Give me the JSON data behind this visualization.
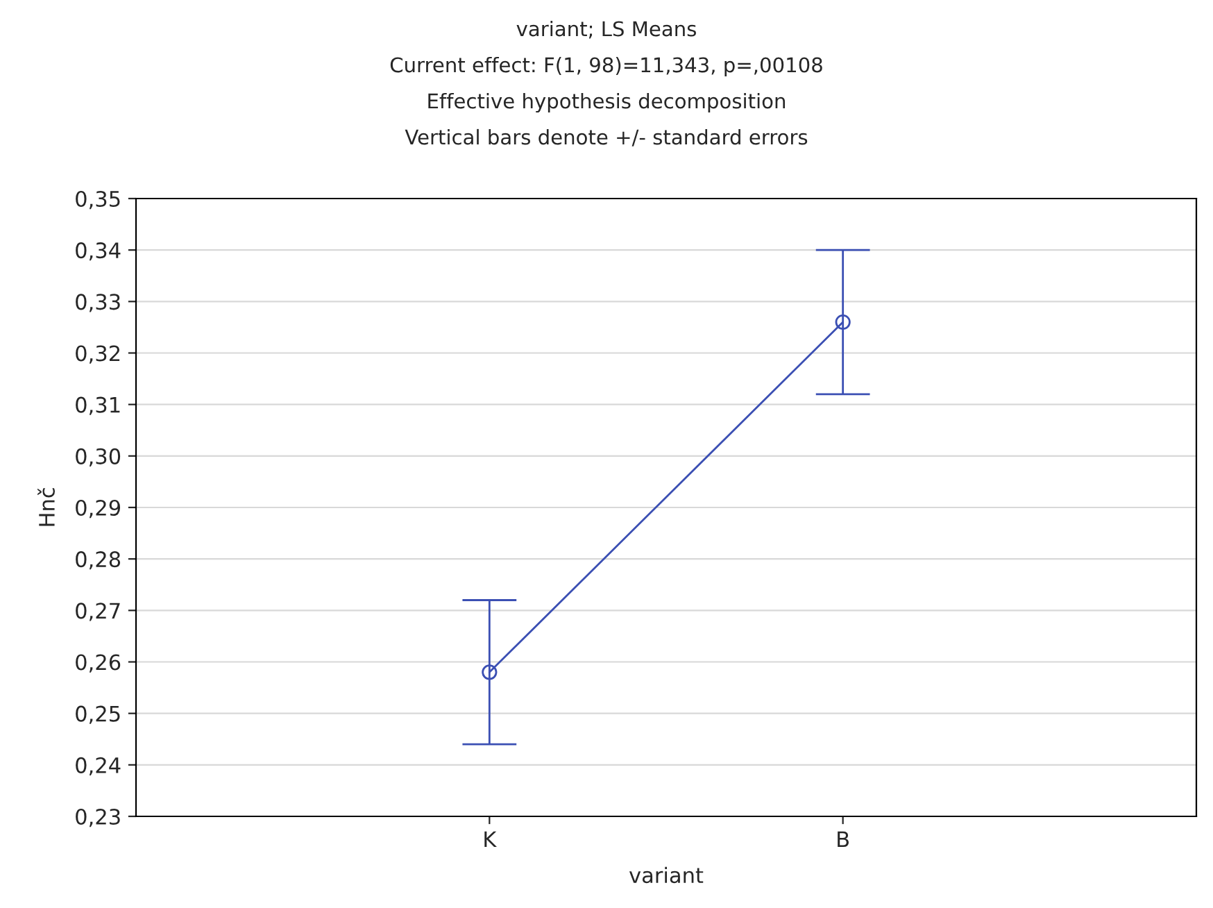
{
  "chart_data": {
    "type": "line",
    "title": "variant; LS Means",
    "subtitle": "Current effect: F(1, 98)=11,343, p=,00108",
    "annotations": [
      "Effective hypothesis decomposition",
      "Vertical bars denote +/- standard errors"
    ],
    "xlabel": "variant",
    "ylabel": "Hnč",
    "categories": [
      "K",
      "B"
    ],
    "series": [
      {
        "color": "#3b4fb3",
        "values": [
          0.258,
          0.326
        ],
        "errors": [
          0.014,
          0.014
        ]
      }
    ],
    "ylim": [
      0.23,
      0.35
    ],
    "yticks": [
      {
        "value": 0.23,
        "label": "0,23"
      },
      {
        "value": 0.24,
        "label": "0,24"
      },
      {
        "value": 0.25,
        "label": "0,25"
      },
      {
        "value": 0.26,
        "label": "0,26"
      },
      {
        "value": 0.27,
        "label": "0,27"
      },
      {
        "value": 0.28,
        "label": "0,28"
      },
      {
        "value": 0.29,
        "label": "0,29"
      },
      {
        "value": 0.3,
        "label": "0,30"
      },
      {
        "value": 0.31,
        "label": "0,31"
      },
      {
        "value": 0.32,
        "label": "0,32"
      },
      {
        "value": 0.33,
        "label": "0,33"
      },
      {
        "value": 0.34,
        "label": "0,34"
      },
      {
        "value": 0.35,
        "label": "0,35"
      }
    ],
    "grid": "y",
    "marker": "circle",
    "line_style": "solid",
    "legend": false
  }
}
